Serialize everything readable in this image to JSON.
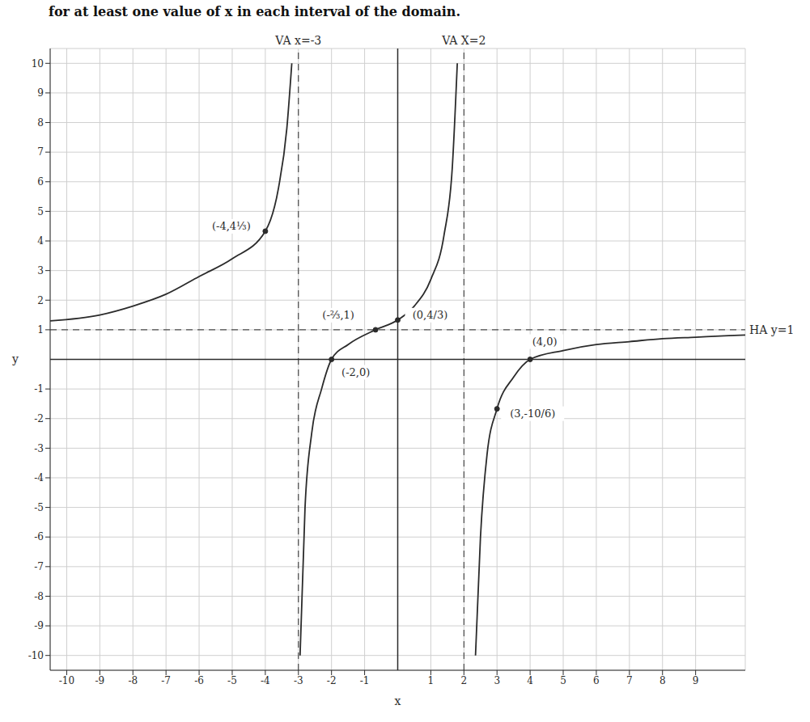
{
  "chart_data": {
    "type": "line",
    "title": "for at least one value of x in each interval of the domain.",
    "x_label": "x",
    "y_label": "y",
    "xlim": [
      -10.5,
      10.5
    ],
    "xticks": [
      -10,
      -9,
      -8,
      -7,
      -6,
      -5,
      -4,
      -3,
      -2,
      -1,
      1,
      2,
      3,
      4,
      5,
      6,
      7,
      8,
      9
    ],
    "ylim": [
      -10.5,
      10.5
    ],
    "yticks": [
      -10,
      -9,
      -8,
      -7,
      -6,
      -5,
      -4,
      -3,
      -2,
      -1,
      1,
      2,
      3,
      4,
      5,
      6,
      7,
      8,
      9,
      10
    ],
    "grid": true,
    "series": [
      {
        "color": "#2b2b2b",
        "line_style": "solid",
        "x": [
          -10.5,
          -9,
          -8,
          -7,
          -6,
          -5,
          -4,
          -3.6,
          -3.35,
          -3.2
        ],
        "values": [
          1.3,
          1.5,
          1.8,
          2.2,
          2.8,
          3.4,
          4.33,
          5.8,
          7.8,
          10
        ]
      },
      {
        "color": "#2b2b2b",
        "line_style": "solid",
        "x": [
          -2.95,
          -2.8,
          -2.6,
          -2.3,
          -2,
          -1.5,
          -0.67,
          0,
          0.5,
          1,
          1.4,
          1.65,
          1.8
        ],
        "values": [
          -10,
          -5,
          -2.5,
          -1,
          0,
          0.5,
          1,
          1.33,
          1.8,
          2.7,
          4.2,
          6.5,
          10
        ]
      },
      {
        "color": "#2b2b2b",
        "line_style": "solid",
        "x": [
          2.35,
          2.5,
          2.7,
          3,
          3.5,
          4,
          5,
          6,
          7,
          8,
          9,
          10,
          10.5
        ],
        "values": [
          -10,
          -6,
          -3.2,
          -1.67,
          -0.6,
          0,
          0.3,
          0.5,
          0.6,
          0.7,
          0.75,
          0.8,
          0.82
        ]
      }
    ],
    "asymptotes": [
      {
        "orientation": "vertical",
        "value": -3,
        "label": "VA x=-3"
      },
      {
        "orientation": "vertical",
        "value": 2,
        "label": "VA X=2"
      },
      {
        "orientation": "horizontal",
        "value": 1,
        "label": "HA y=1"
      }
    ],
    "points": [
      {
        "x": -4,
        "y": 4.33,
        "label": "(-4,4⅓)"
      },
      {
        "x": -0.67,
        "y": 1,
        "label": "(-⅔,1)"
      },
      {
        "x": 0,
        "y": 1.33,
        "label": "(0,4/3)"
      },
      {
        "x": -2,
        "y": 0,
        "label": "(-2,0)"
      },
      {
        "x": 4,
        "y": 0,
        "label": "(4,0)"
      },
      {
        "x": 3,
        "y": -1.67,
        "label": "(3,-10/6)"
      }
    ]
  }
}
